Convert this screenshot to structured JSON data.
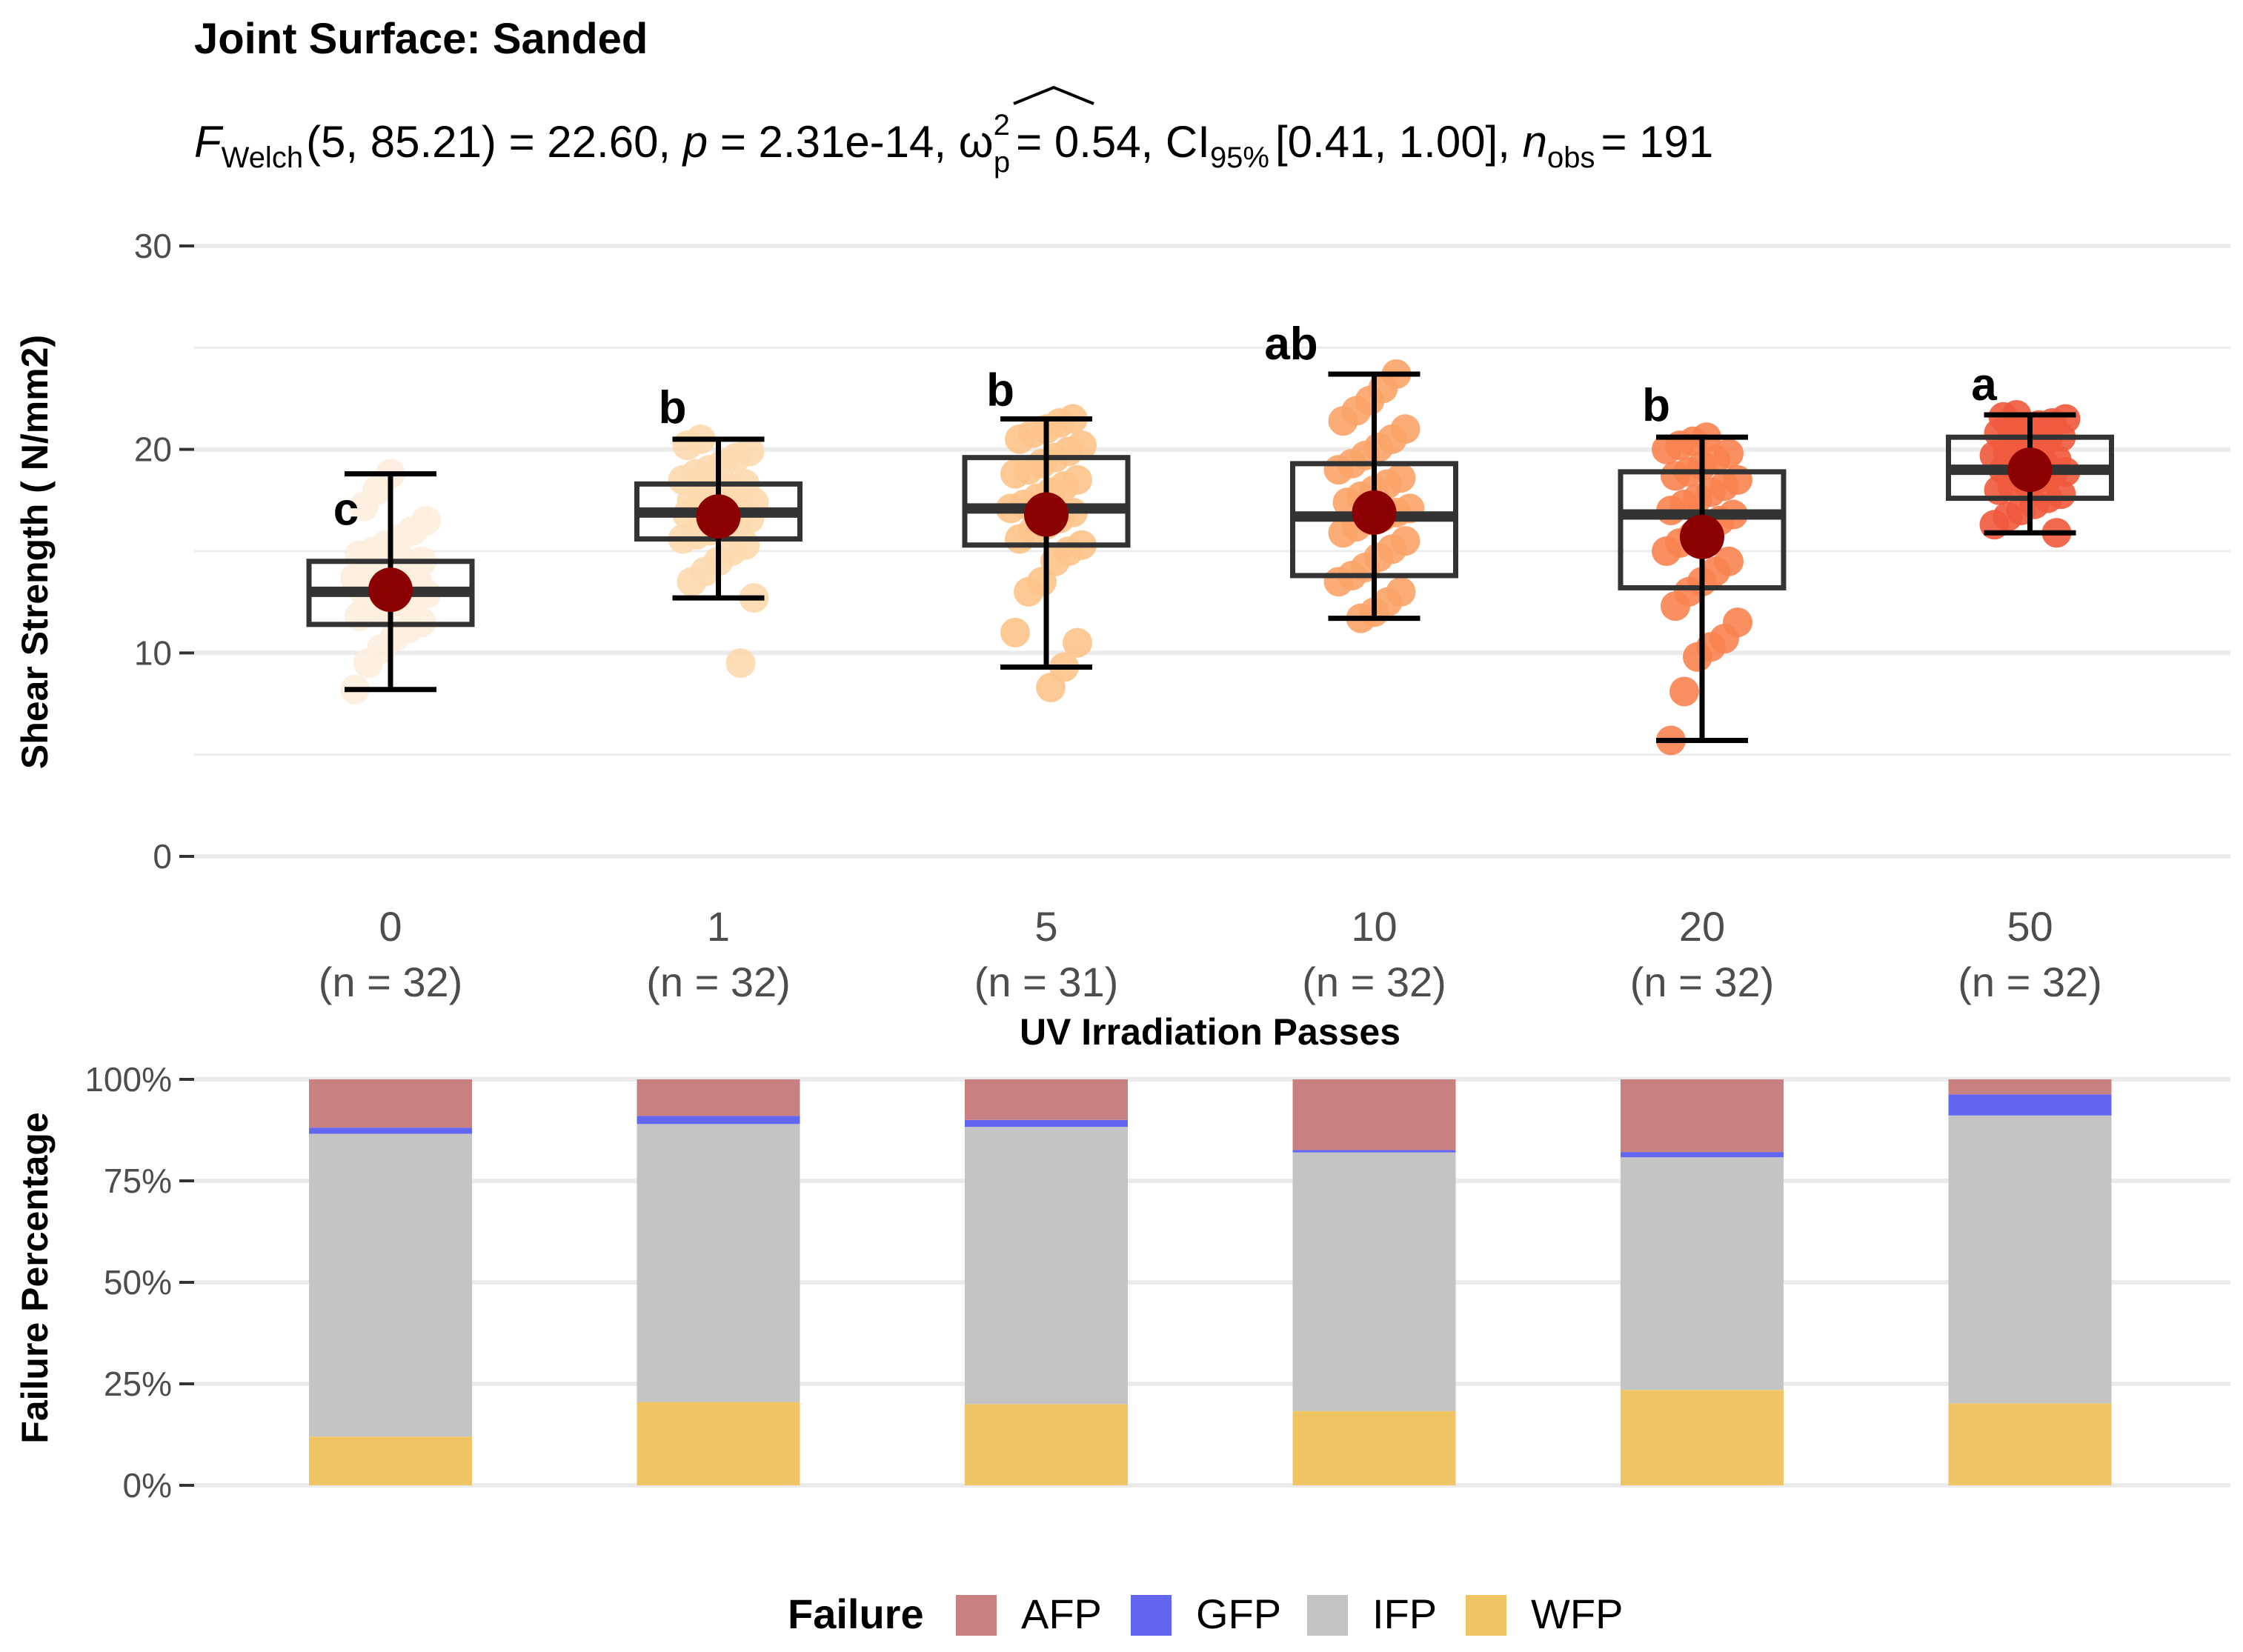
{
  "chart_data": [
    {
      "type": "box",
      "title": "Joint Surface: Sanded",
      "subtitle": {
        "stat_label": "F",
        "stat_sub": "Welch",
        "df": "(5, 85.21)",
        "stat_value": "= 22.60,",
        "p_label": "p",
        "p_value": "= 2.31e-14,",
        "effect_label": "ω",
        "effect_sup": "2",
        "effect_sub": "p",
        "effect_value": "= 0.54, CI",
        "ci_sub": "95%",
        "ci_value": "[0.41, 1.00],",
        "n_label": "n",
        "n_sub": "obs",
        "n_value": "= 191"
      },
      "xlabel": "UV Irradiation Passes",
      "ylabel": "Shear Strength ( N/mm2)",
      "ylim": [
        0,
        30
      ],
      "yticks": [
        "0",
        "10",
        "20",
        "30"
      ],
      "ytick_values": [
        0,
        10,
        20,
        30
      ],
      "categories": [
        "0",
        "1",
        "5",
        "10",
        "20",
        "50"
      ],
      "n_labels": [
        "(n = 32)",
        "(n = 32)",
        "(n = 31)",
        "(n = 32)",
        "(n = 32)",
        "(n = 32)"
      ],
      "point_colors": [
        "#fdeede",
        "#fdd9ae",
        "#fdc48b",
        "#fca468",
        "#fa8350",
        "#ef5a3d"
      ],
      "mean_color": "#8b0000",
      "groups": [
        {
          "category": "0",
          "letter": "c",
          "q1": 11.4,
          "median": 13.0,
          "q3": 14.5,
          "whisker_low": 8.2,
          "whisker_high": 18.8,
          "mean": 13.1,
          "points": [
            8.2,
            9.5,
            10.2,
            10.8,
            11.2,
            11.5,
            11.8,
            12.0,
            12.2,
            12.5,
            12.7,
            12.9,
            13.0,
            13.1,
            13.2,
            13.4,
            13.5,
            13.7,
            13.9,
            14.0,
            14.2,
            14.4,
            14.5,
            14.8,
            15.0,
            15.3,
            15.6,
            16.0,
            16.5,
            17.2,
            18.0,
            18.8
          ]
        },
        {
          "category": "1",
          "letter": "b",
          "q1": 15.6,
          "median": 16.9,
          "q3": 18.3,
          "whisker_low": 12.7,
          "whisker_high": 20.5,
          "mean": 16.7,
          "points": [
            9.5,
            12.7,
            13.5,
            14.0,
            14.5,
            15.0,
            15.3,
            15.6,
            15.8,
            16.0,
            16.2,
            16.4,
            16.6,
            16.8,
            16.9,
            17.0,
            17.1,
            17.2,
            17.4,
            17.5,
            17.7,
            17.9,
            18.1,
            18.3,
            18.5,
            18.8,
            19.0,
            19.3,
            19.6,
            19.9,
            20.2,
            20.5
          ]
        },
        {
          "category": "5",
          "letter": "b",
          "q1": 15.3,
          "median": 17.1,
          "q3": 19.6,
          "whisker_low": 9.3,
          "whisker_high": 21.5,
          "mean": 16.8,
          "points": [
            8.3,
            9.3,
            10.5,
            11.0,
            13.0,
            13.5,
            14.5,
            15.0,
            15.3,
            15.6,
            16.0,
            16.3,
            16.6,
            16.9,
            17.1,
            17.3,
            17.6,
            17.9,
            18.2,
            18.5,
            18.8,
            19.0,
            19.3,
            19.6,
            19.9,
            20.2,
            20.5,
            20.8,
            21.0,
            21.3,
            21.5
          ]
        },
        {
          "category": "10",
          "letter": "ab",
          "q1": 13.8,
          "median": 16.7,
          "q3": 19.3,
          "whisker_low": 11.7,
          "whisker_high": 23.7,
          "mean": 16.9,
          "points": [
            11.7,
            12.0,
            12.5,
            13.0,
            13.5,
            13.8,
            14.2,
            14.7,
            15.1,
            15.5,
            15.9,
            16.2,
            16.5,
            16.7,
            16.9,
            17.1,
            17.4,
            17.7,
            18.0,
            18.3,
            18.6,
            19.0,
            19.3,
            19.7,
            20.1,
            20.5,
            21.0,
            21.4,
            21.9,
            22.4,
            23.0,
            23.7
          ]
        },
        {
          "category": "20",
          "letter": "b",
          "q1": 13.2,
          "median": 16.8,
          "q3": 18.9,
          "whisker_low": 5.7,
          "whisker_high": 20.6,
          "mean": 15.7,
          "points": [
            5.7,
            8.1,
            9.8,
            10.3,
            10.7,
            11.5,
            12.3,
            13.0,
            13.5,
            14.0,
            14.5,
            15.0,
            15.4,
            15.8,
            16.2,
            16.5,
            16.8,
            17.0,
            17.3,
            17.6,
            17.9,
            18.2,
            18.5,
            18.7,
            18.9,
            19.2,
            19.5,
            19.8,
            20.0,
            20.2,
            20.4,
            20.6
          ]
        },
        {
          "category": "50",
          "letter": "a",
          "q1": 17.6,
          "median": 19.0,
          "q3": 20.6,
          "whisker_low": 15.9,
          "whisker_high": 21.7,
          "mean": 19.0,
          "points": [
            15.9,
            16.3,
            16.7,
            17.0,
            17.3,
            17.6,
            17.8,
            18.0,
            18.2,
            18.4,
            18.6,
            18.8,
            18.9,
            19.0,
            19.1,
            19.2,
            19.4,
            19.5,
            19.7,
            19.9,
            20.1,
            20.3,
            20.5,
            20.6,
            20.8,
            20.9,
            21.0,
            21.2,
            21.3,
            21.5,
            21.6,
            21.7
          ]
        }
      ]
    },
    {
      "type": "stacked_bar",
      "ylabel": "Failure Percentage",
      "yticks": [
        "0%",
        "25%",
        "50%",
        "75%",
        "100%"
      ],
      "ytick_values": [
        0,
        25,
        50,
        75,
        100
      ],
      "categories": [
        "0",
        "1",
        "5",
        "10",
        "20",
        "50"
      ],
      "series": [
        {
          "name": "WFP",
          "color": "#efc564",
          "values": [
            12,
            20.5,
            20,
            18.3,
            23.5,
            20.2
          ]
        },
        {
          "name": "IFP",
          "color": "#c4c4c4",
          "values": [
            74.6,
            68.5,
            68.3,
            63.7,
            57.3,
            70.9
          ]
        },
        {
          "name": "GFP",
          "color": "#6366f0",
          "values": [
            1.5,
            2.0,
            1.7,
            0.6,
            1.3,
            5.2
          ]
        },
        {
          "name": "AFP",
          "color": "#c98080",
          "values": [
            11.9,
            9.0,
            10.0,
            17.4,
            17.9,
            3.7
          ]
        }
      ]
    }
  ],
  "legend": {
    "title": "Failure",
    "items": [
      {
        "name": "AFP",
        "color": "#c98080"
      },
      {
        "name": "GFP",
        "color": "#6366f0"
      },
      {
        "name": "IFP",
        "color": "#c4c4c4"
      },
      {
        "name": "WFP",
        "color": "#efc564"
      }
    ]
  }
}
